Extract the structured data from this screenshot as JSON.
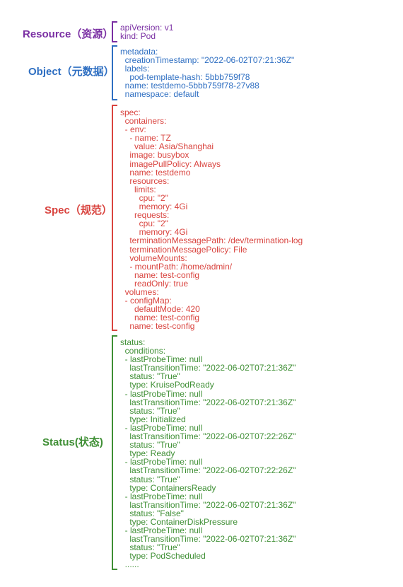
{
  "colors": {
    "resource": "#7a2fa3",
    "object": "#2f6fc2",
    "spec": "#d9443f",
    "status": "#3f8f35"
  },
  "sections": {
    "resource": {
      "label": "Resource（资源）",
      "lines": [
        "apiVersion: v1",
        "kind: Pod"
      ]
    },
    "object": {
      "label": "Object（元数据）",
      "lines": [
        "metadata:",
        "  creationTimestamp: \"2022-06-02T07:21:36Z\"",
        "  labels:",
        "    pod-template-hash: 5bbb759f78",
        "  name: testdemo-5bbb759f78-27v88",
        "  namespace: default"
      ]
    },
    "spec": {
      "label": "Spec（规范）",
      "lines": [
        "spec:",
        "  containers:",
        "  - env:",
        "    - name: TZ",
        "      value: Asia/Shanghai",
        "    image: busybox",
        "    imagePullPolicy: Always",
        "    name: testdemo",
        "    resources:",
        "      limits:",
        "        cpu: \"2\"",
        "        memory: 4Gi",
        "      requests:",
        "        cpu: \"2\"",
        "        memory: 4Gi",
        "    terminationMessagePath: /dev/termination-log",
        "    terminationMessagePolicy: File",
        "    volumeMounts:",
        "    - mountPath: /home/admin/",
        "      name: test-config",
        "      readOnly: true",
        "  volumes:",
        "  - configMap:",
        "      defaultMode: 420",
        "      name: test-config",
        "    name: test-config"
      ]
    },
    "status": {
      "label": "Status(状态)",
      "lines": [
        "status:",
        "  conditions:",
        "  - lastProbeTime: null",
        "    lastTransitionTime: \"2022-06-02T07:21:36Z\"",
        "    status: \"True\"",
        "    type: KruisePodReady",
        "  - lastProbeTime: null",
        "    lastTransitionTime: \"2022-06-02T07:21:36Z\"",
        "    status: \"True\"",
        "    type: Initialized",
        "  - lastProbeTime: null",
        "    lastTransitionTime: \"2022-06-02T07:22:26Z\"",
        "    status: \"True\"",
        "    type: Ready",
        "  - lastProbeTime: null",
        "    lastTransitionTime: \"2022-06-02T07:22:26Z\"",
        "    status: \"True\"",
        "    type: ContainersReady",
        "  - lastProbeTime: null",
        "    lastTransitionTime: \"2022-06-02T07:21:36Z\"",
        "    status: \"False\"",
        "    type: ContainerDiskPressure",
        "  - lastProbeTime: null",
        "    lastTransitionTime: \"2022-06-02T07:21:36Z\"",
        "    status: \"True\"",
        "    type: PodScheduled",
        "  ......"
      ]
    }
  }
}
